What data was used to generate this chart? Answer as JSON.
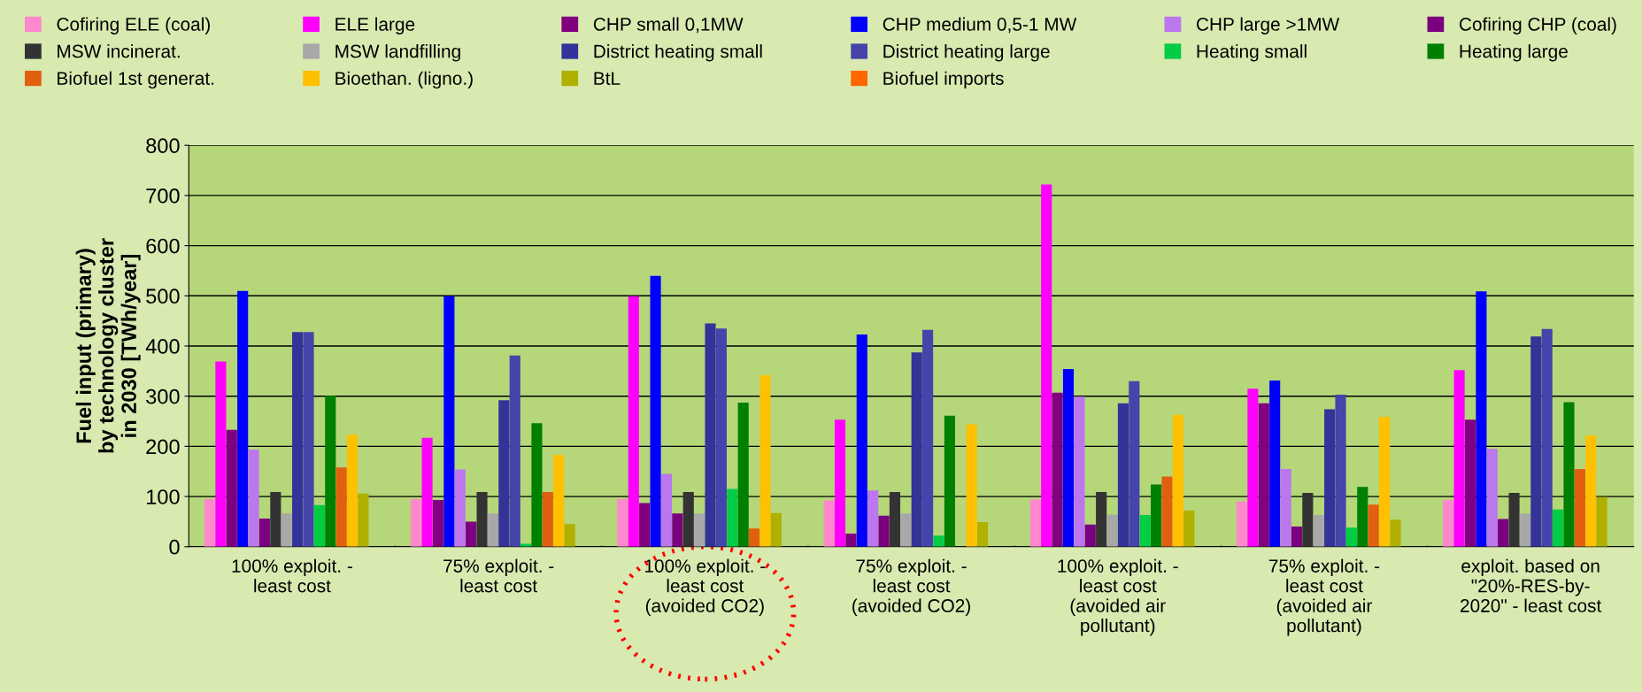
{
  "chart_data": {
    "type": "bar",
    "ylabel": "Fuel input (primary)\nby technology cluster\nin 2030 [TWh/year]",
    "categories": [
      "100% exploit. -\nleast cost",
      "75% exploit. -\nleast cost",
      "100% exploit. -\nleast cost\n(avoided CO2)",
      "75% exploit. -\nleast cost\n(avoided CO2)",
      "100% exploit. -\nleast cost\n(avoided air\npollutant)",
      "75% exploit. -\nleast cost\n(avoided air\npollutant)",
      "exploit. based on\n\"20%-RES-by-\n2020\" - least cost"
    ],
    "series": [
      {
        "name": "Cofiring ELE (coal)",
        "color": "#ff88cc",
        "values": [
          95,
          95,
          95,
          92,
          94,
          90,
          93
        ]
      },
      {
        "name": "ELE large",
        "color": "#ff00ff",
        "values": [
          369,
          217,
          499,
          253,
          722,
          315,
          352
        ]
      },
      {
        "name": "CHP small 0,1MW",
        "color": "#800080",
        "values": [
          233,
          93,
          87,
          26,
          307,
          286,
          253
        ]
      },
      {
        "name": "CHP medium 0,5-1 MW",
        "color": "#0000ff",
        "values": [
          510,
          499,
          540,
          423,
          354,
          331,
          509
        ]
      },
      {
        "name": "CHP large >1MW",
        "color": "#bb77ee",
        "values": [
          193,
          154,
          145,
          112,
          299,
          155,
          195
        ]
      },
      {
        "name": "Cofiring CHP (coal)",
        "color": "#7a0080",
        "values": [
          56,
          50,
          66,
          62,
          44,
          40,
          55
        ]
      },
      {
        "name": "MSW incinerat.",
        "color": "#333333",
        "values": [
          109,
          109,
          109,
          109,
          109,
          107,
          107
        ]
      },
      {
        "name": "MSW landfilling",
        "color": "#a8a8a8",
        "values": [
          66,
          66,
          66,
          66,
          64,
          63,
          66
        ]
      },
      {
        "name": "District heating small",
        "color": "#333399",
        "values": [
          428,
          292,
          445,
          387,
          286,
          274,
          419
        ]
      },
      {
        "name": "District heating large",
        "color": "#4444aa",
        "values": [
          428,
          381,
          435,
          432,
          330,
          303,
          434
        ]
      },
      {
        "name": "Heating small",
        "color": "#00cc44",
        "values": [
          83,
          6,
          115,
          22,
          63,
          38,
          74
        ]
      },
      {
        "name": "Heating large",
        "color": "#008000",
        "values": [
          301,
          246,
          287,
          261,
          124,
          119,
          288
        ]
      },
      {
        "name": "Biofuel 1st generat.",
        "color": "#e06010",
        "values": [
          158,
          109,
          36,
          0,
          140,
          84,
          155
        ]
      },
      {
        "name": "Bioethan. (ligno.)",
        "color": "#ffc000",
        "values": [
          223,
          183,
          342,
          244,
          263,
          259,
          222
        ]
      },
      {
        "name": "BtL",
        "color": "#b0b000",
        "values": [
          106,
          45,
          67,
          49,
          72,
          54,
          99
        ]
      },
      {
        "name": "Biofuel imports",
        "color": "#ff6600",
        "values": [
          0,
          0,
          0,
          0,
          0,
          0,
          0
        ]
      }
    ],
    "ylim": [
      0,
      800
    ],
    "yticks": [
      0,
      100,
      200,
      300,
      400,
      500,
      600,
      700,
      800
    ],
    "grid": "y",
    "legend": "top"
  }
}
